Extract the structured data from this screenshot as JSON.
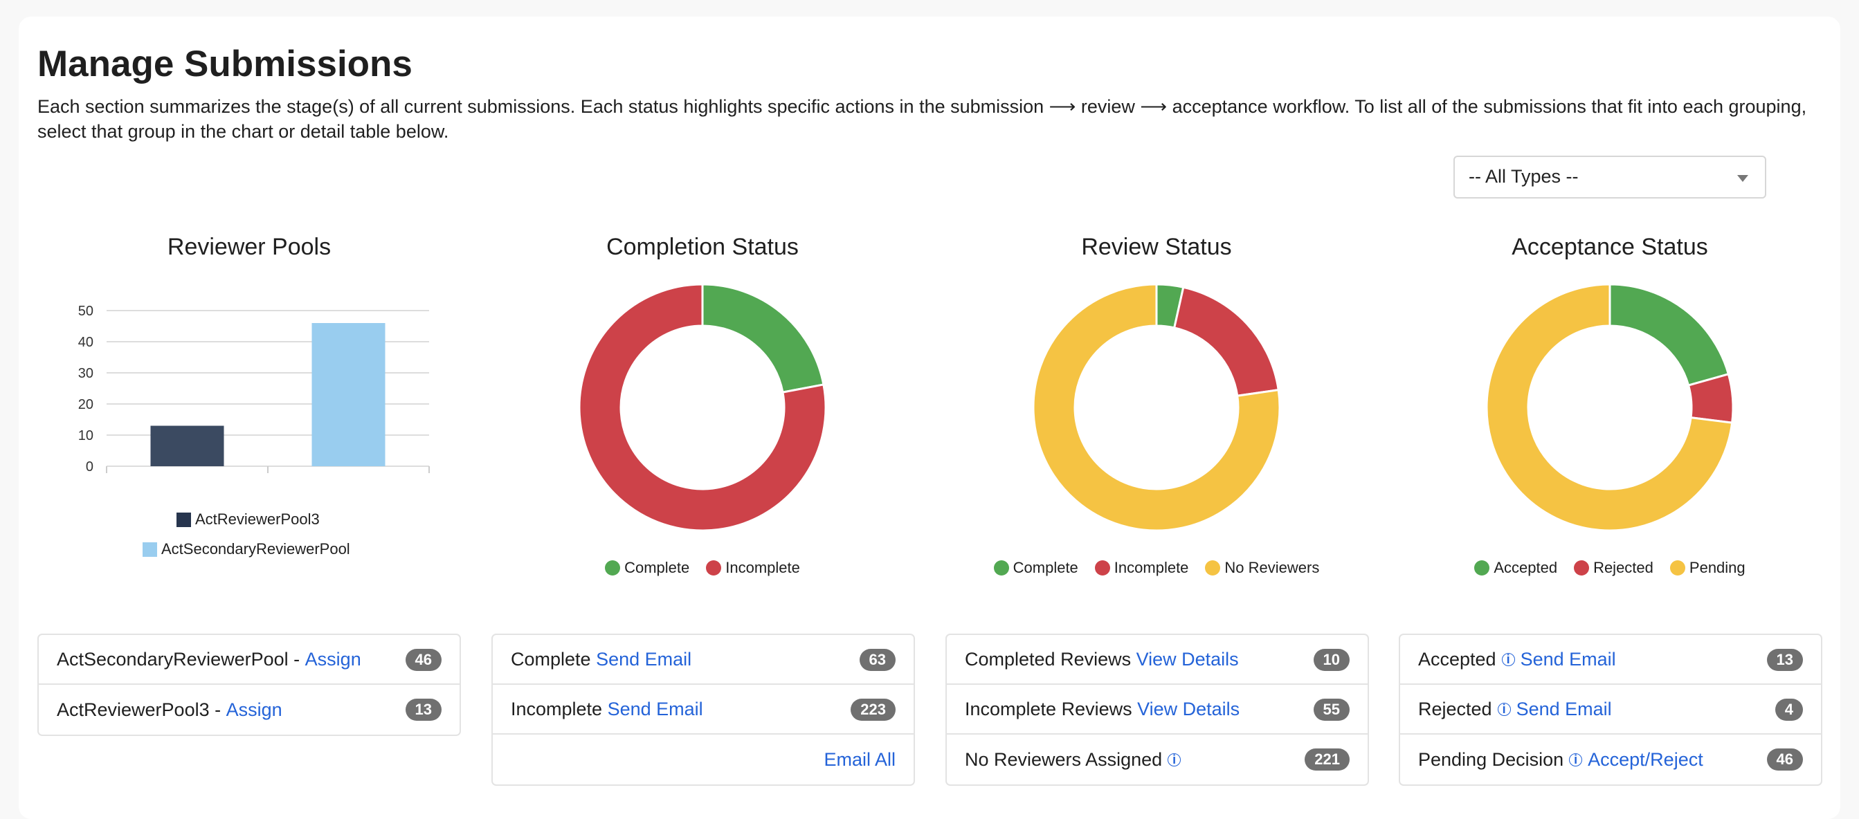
{
  "header": {
    "title": "Manage Submissions",
    "description": "Each section summarizes the stage(s) of all current submissions. Each status highlights specific actions in the submission ⟶ review ⟶ acceptance workflow. To list all of the submissions that fit into each grouping, select that group in the chart or detail table below."
  },
  "filter": {
    "selected": "-- All Types --"
  },
  "colors": {
    "green": "#52a852",
    "red": "#cd4249",
    "yellow": "#f5c343",
    "dark": "#3b4a61",
    "light": "#99cdef",
    "link": "#2463d8"
  },
  "charts": {
    "reviewer_pools": {
      "title": "Reviewer Pools"
    },
    "completion": {
      "title": "Completion Status",
      "legend": [
        "Complete",
        "Incomplete"
      ]
    },
    "review": {
      "title": "Review Status",
      "legend": [
        "Complete",
        "Incomplete",
        "No Reviewers"
      ]
    },
    "acceptance": {
      "title": "Acceptance Status",
      "legend": [
        "Accepted",
        "Rejected",
        "Pending"
      ]
    }
  },
  "chart_data": [
    {
      "type": "bar",
      "title": "Reviewer Pools",
      "series": [
        {
          "name": "ActReviewerPool3",
          "values": [
            13
          ],
          "color": "#3b4a61"
        },
        {
          "name": "ActSecondaryReviewerPool",
          "values": [
            46
          ],
          "color": "#99cdef"
        }
      ],
      "yticks": [
        "0",
        "10",
        "20",
        "30",
        "40",
        "50"
      ],
      "ylim": [
        0,
        50
      ],
      "grid": true,
      "legend_position": "bottom"
    },
    {
      "type": "pie",
      "title": "Completion Status",
      "labels": [
        "Complete",
        "Incomplete"
      ],
      "values": [
        63,
        223
      ],
      "colors": [
        "#52a852",
        "#cd4249"
      ]
    },
    {
      "type": "pie",
      "title": "Review Status",
      "labels": [
        "Complete",
        "Incomplete",
        "No Reviewers"
      ],
      "values": [
        10,
        55,
        221
      ],
      "colors": [
        "#52a852",
        "#cd4249",
        "#f5c343"
      ]
    },
    {
      "type": "pie",
      "title": "Acceptance Status",
      "labels": [
        "Accepted",
        "Rejected",
        "Pending"
      ],
      "values": [
        13,
        4,
        46
      ],
      "colors": [
        "#52a852",
        "#cd4249",
        "#f5c343"
      ]
    }
  ],
  "tables": {
    "pools": [
      {
        "label": "ActSecondaryReviewerPool - ",
        "action": "Assign",
        "count": "46"
      },
      {
        "label": "ActReviewerPool3 - ",
        "action": "Assign",
        "count": "13"
      }
    ],
    "completion": [
      {
        "label": "Complete ",
        "action": "Send Email",
        "count": "63"
      },
      {
        "label": "Incomplete ",
        "action": "Send Email",
        "count": "223"
      }
    ],
    "completion_footer": "Email All",
    "review": [
      {
        "label": "Completed Reviews ",
        "action": "View Details",
        "count": "10"
      },
      {
        "label": "Incomplete Reviews ",
        "action": "View Details",
        "count": "55"
      },
      {
        "label": "No Reviewers Assigned",
        "action": "",
        "count": "221"
      }
    ],
    "acceptance": [
      {
        "label": "Accepted",
        "action": "Send Email",
        "count": "13"
      },
      {
        "label": "Rejected",
        "action": "Send Email",
        "count": "4"
      },
      {
        "label": "Pending Decision",
        "action": "Accept/Reject",
        "count": "46"
      }
    ]
  }
}
